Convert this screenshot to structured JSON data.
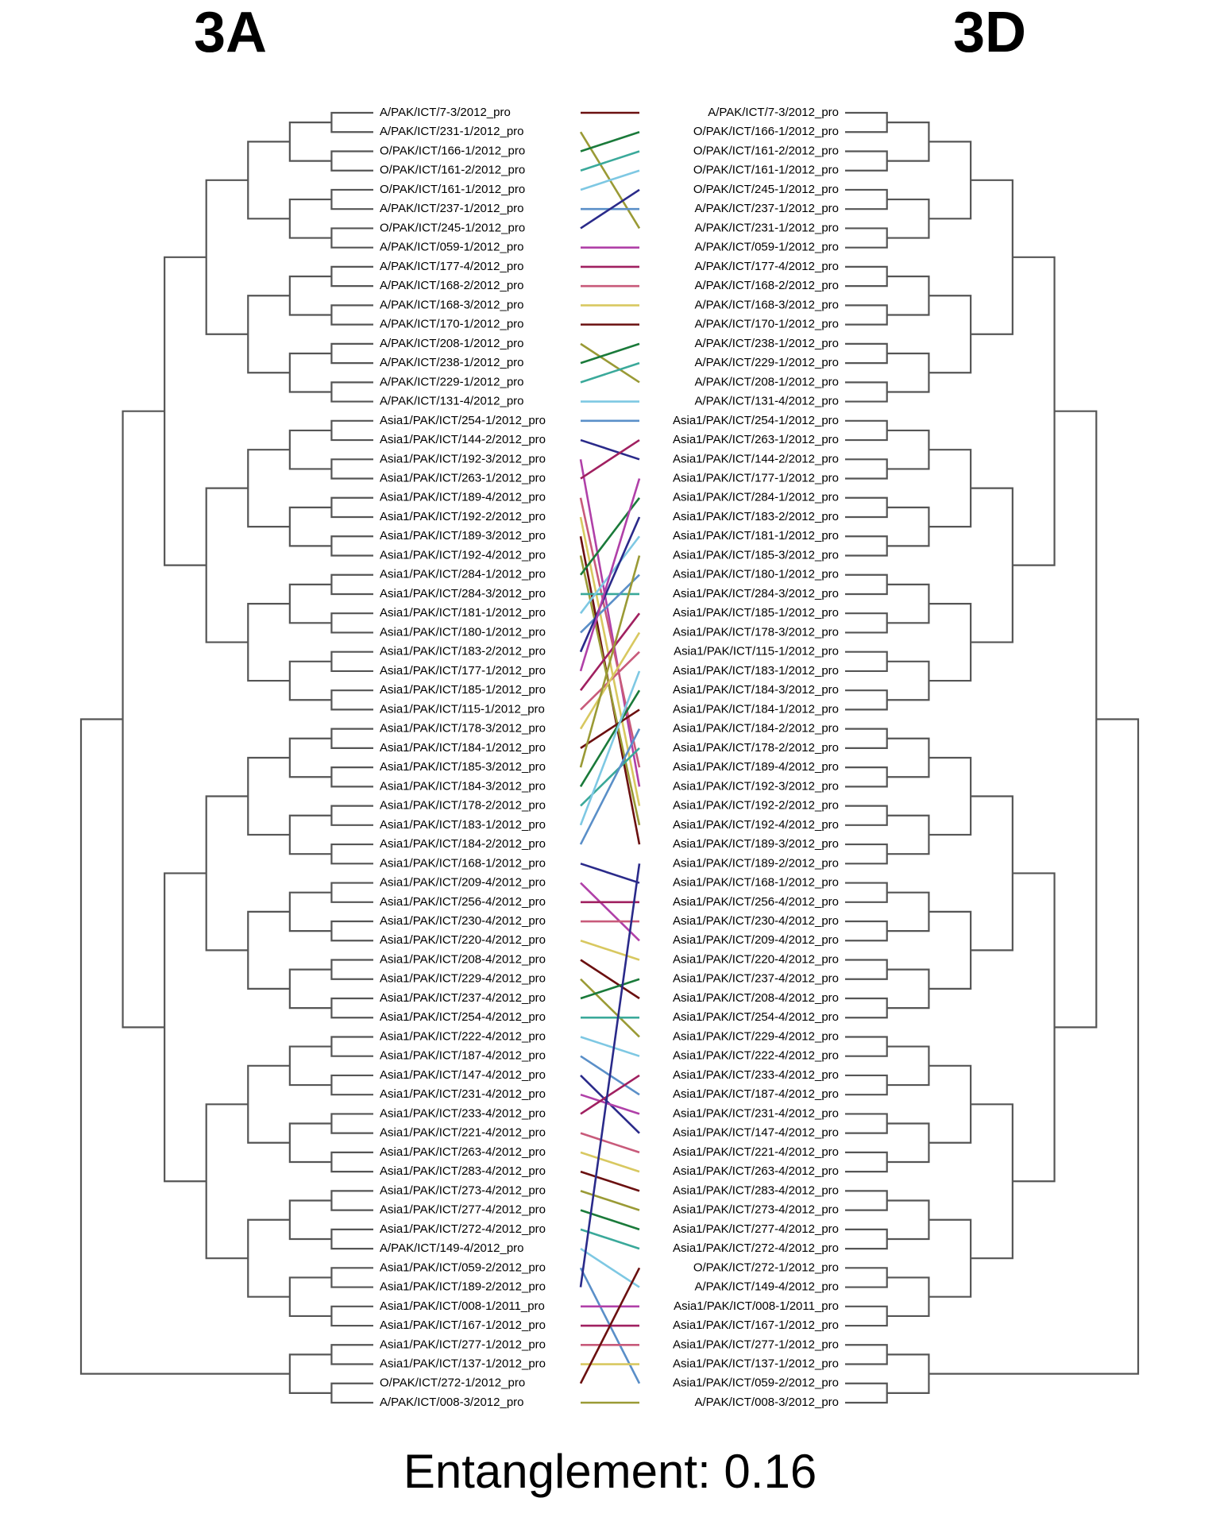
{
  "titles": {
    "left": "3A",
    "right": "3D"
  },
  "left_labels": [
    "A/PAK/ICT/7-3/2012_pro",
    "A/PAK/ICT/231-1/2012_pro",
    "O/PAK/ICT/166-1/2012_pro",
    "O/PAK/ICT/161-2/2012_pro",
    "O/PAK/ICT/161-1/2012_pro",
    "A/PAK/ICT/237-1/2012_pro",
    "O/PAK/ICT/245-1/2012_pro",
    "A/PAK/ICT/059-1/2012_pro",
    "A/PAK/ICT/177-4/2012_pro",
    "A/PAK/ICT/168-2/2012_pro",
    "A/PAK/ICT/168-3/2012_pro",
    "A/PAK/ICT/170-1/2012_pro",
    "A/PAK/ICT/208-1/2012_pro",
    "A/PAK/ICT/238-1/2012_pro",
    "A/PAK/ICT/229-1/2012_pro",
    "A/PAK/ICT/131-4/2012_pro",
    "Asia1/PAK/ICT/254-1/2012_pro",
    "Asia1/PAK/ICT/144-2/2012_pro",
    "Asia1/PAK/ICT/192-3/2012_pro",
    "Asia1/PAK/ICT/263-1/2012_pro",
    "Asia1/PAK/ICT/189-4/2012_pro",
    "Asia1/PAK/ICT/192-2/2012_pro",
    "Asia1/PAK/ICT/189-3/2012_pro",
    "Asia1/PAK/ICT/192-4/2012_pro",
    "Asia1/PAK/ICT/284-1/2012_pro",
    "Asia1/PAK/ICT/284-3/2012_pro",
    "Asia1/PAK/ICT/181-1/2012_pro",
    "Asia1/PAK/ICT/180-1/2012_pro",
    "Asia1/PAK/ICT/183-2/2012_pro",
    "Asia1/PAK/ICT/177-1/2012_pro",
    "Asia1/PAK/ICT/185-1/2012_pro",
    "Asia1/PAK/ICT/115-1/2012_pro",
    "Asia1/PAK/ICT/178-3/2012_pro",
    "Asia1/PAK/ICT/184-1/2012_pro",
    "Asia1/PAK/ICT/185-3/2012_pro",
    "Asia1/PAK/ICT/184-3/2012_pro",
    "Asia1/PAK/ICT/178-2/2012_pro",
    "Asia1/PAK/ICT/183-1/2012_pro",
    "Asia1/PAK/ICT/184-2/2012_pro",
    "Asia1/PAK/ICT/168-1/2012_pro",
    "Asia1/PAK/ICT/209-4/2012_pro",
    "Asia1/PAK/ICT/256-4/2012_pro",
    "Asia1/PAK/ICT/230-4/2012_pro",
    "Asia1/PAK/ICT/220-4/2012_pro",
    "Asia1/PAK/ICT/208-4/2012_pro",
    "Asia1/PAK/ICT/229-4/2012_pro",
    "Asia1/PAK/ICT/237-4/2012_pro",
    "Asia1/PAK/ICT/254-4/2012_pro",
    "Asia1/PAK/ICT/222-4/2012_pro",
    "Asia1/PAK/ICT/187-4/2012_pro",
    "Asia1/PAK/ICT/147-4/2012_pro",
    "Asia1/PAK/ICT/231-4/2012_pro",
    "Asia1/PAK/ICT/233-4/2012_pro",
    "Asia1/PAK/ICT/221-4/2012_pro",
    "Asia1/PAK/ICT/263-4/2012_pro",
    "Asia1/PAK/ICT/283-4/2012_pro",
    "Asia1/PAK/ICT/273-4/2012_pro",
    "Asia1/PAK/ICT/277-4/2012_pro",
    "Asia1/PAK/ICT/272-4/2012_pro",
    "A/PAK/ICT/149-4/2012_pro",
    "Asia1/PAK/ICT/059-2/2012_pro",
    "Asia1/PAK/ICT/189-2/2012_pro",
    "Asia1/PAK/ICT/008-1/2011_pro",
    "Asia1/PAK/ICT/167-1/2012_pro",
    "Asia1/PAK/ICT/277-1/2012_pro",
    "Asia1/PAK/ICT/137-1/2012_pro",
    "O/PAK/ICT/272-1/2012_pro",
    "A/PAK/ICT/008-3/2012_pro"
  ],
  "right_labels": [
    "A/PAK/ICT/7-3/2012_pro",
    "O/PAK/ICT/166-1/2012_pro",
    "O/PAK/ICT/161-2/2012_pro",
    "O/PAK/ICT/161-1/2012_pro",
    "O/PAK/ICT/245-1/2012_pro",
    "A/PAK/ICT/237-1/2012_pro",
    "A/PAK/ICT/231-1/2012_pro",
    "A/PAK/ICT/059-1/2012_pro",
    "A/PAK/ICT/177-4/2012_pro",
    "A/PAK/ICT/168-2/2012_pro",
    "A/PAK/ICT/168-3/2012_pro",
    "A/PAK/ICT/170-1/2012_pro",
    "A/PAK/ICT/238-1/2012_pro",
    "A/PAK/ICT/229-1/2012_pro",
    "A/PAK/ICT/208-1/2012_pro",
    "A/PAK/ICT/131-4/2012_pro",
    "Asia1/PAK/ICT/254-1/2012_pro",
    "Asia1/PAK/ICT/263-1/2012_pro",
    "Asia1/PAK/ICT/144-2/2012_pro",
    "Asia1/PAK/ICT/177-1/2012_pro",
    "Asia1/PAK/ICT/284-1/2012_pro",
    "Asia1/PAK/ICT/183-2/2012_pro",
    "Asia1/PAK/ICT/181-1/2012_pro",
    "Asia1/PAK/ICT/185-3/2012_pro",
    "Asia1/PAK/ICT/180-1/2012_pro",
    "Asia1/PAK/ICT/284-3/2012_pro",
    "Asia1/PAK/ICT/185-1/2012_pro",
    "Asia1/PAK/ICT/178-3/2012_pro",
    "Asia1/PAK/ICT/115-1/2012_pro",
    "Asia1/PAK/ICT/183-1/2012_pro",
    "Asia1/PAK/ICT/184-3/2012_pro",
    "Asia1/PAK/ICT/184-1/2012_pro",
    "Asia1/PAK/ICT/184-2/2012_pro",
    "Asia1/PAK/ICT/178-2/2012_pro",
    "Asia1/PAK/ICT/189-4/2012_pro",
    "Asia1/PAK/ICT/192-3/2012_pro",
    "Asia1/PAK/ICT/192-2/2012_pro",
    "Asia1/PAK/ICT/192-4/2012_pro",
    "Asia1/PAK/ICT/189-3/2012_pro",
    "Asia1/PAK/ICT/189-2/2012_pro",
    "Asia1/PAK/ICT/168-1/2012_pro",
    "Asia1/PAK/ICT/256-4/2012_pro",
    "Asia1/PAK/ICT/230-4/2012_pro",
    "Asia1/PAK/ICT/209-4/2012_pro",
    "Asia1/PAK/ICT/220-4/2012_pro",
    "Asia1/PAK/ICT/237-4/2012_pro",
    "Asia1/PAK/ICT/208-4/2012_pro",
    "Asia1/PAK/ICT/254-4/2012_pro",
    "Asia1/PAK/ICT/229-4/2012_pro",
    "Asia1/PAK/ICT/222-4/2012_pro",
    "Asia1/PAK/ICT/233-4/2012_pro",
    "Asia1/PAK/ICT/187-4/2012_pro",
    "Asia1/PAK/ICT/231-4/2012_pro",
    "Asia1/PAK/ICT/147-4/2012_pro",
    "Asia1/PAK/ICT/221-4/2012_pro",
    "Asia1/PAK/ICT/263-4/2012_pro",
    "Asia1/PAK/ICT/283-4/2012_pro",
    "Asia1/PAK/ICT/273-4/2012_pro",
    "Asia1/PAK/ICT/277-4/2012_pro",
    "Asia1/PAK/ICT/272-4/2012_pro",
    "O/PAK/ICT/272-1/2012_pro",
    "A/PAK/ICT/149-4/2012_pro",
    "Asia1/PAK/ICT/008-1/2011_pro",
    "Asia1/PAK/ICT/167-1/2012_pro",
    "Asia1/PAK/ICT/277-1/2012_pro",
    "Asia1/PAK/ICT/137-1/2012_pro",
    "Asia1/PAK/ICT/059-2/2012_pro",
    "A/PAK/ICT/008-3/2012_pro"
  ],
  "entanglement": "Entanglement: 0.16",
  "connector_palette": [
    "#6b1010",
    "#9a9a35",
    "#1a7a3a",
    "#3aa99a",
    "#7ec8e3",
    "#5a8fc8",
    "#2a2a8a",
    "#b040a8",
    "#a02060",
    "#c85a7a",
    "#d8c860"
  ]
}
